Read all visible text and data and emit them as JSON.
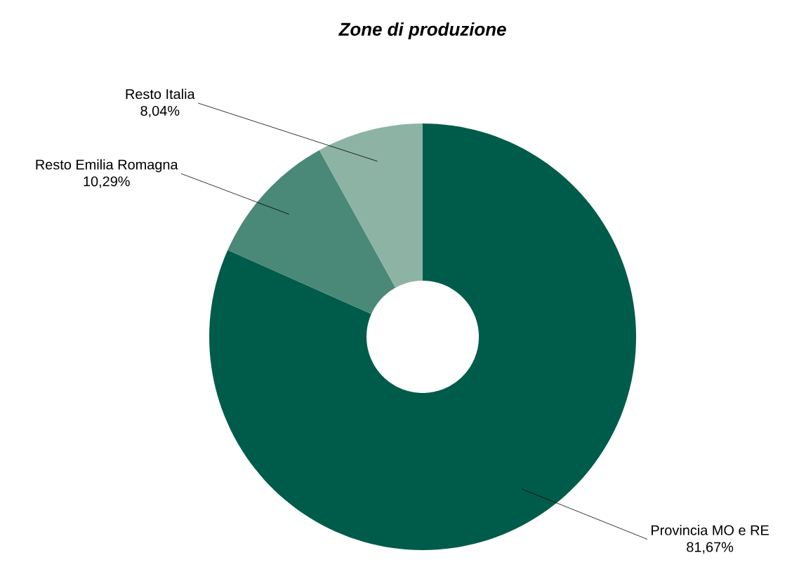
{
  "chart_data": {
    "type": "donut",
    "title": "Zone di produzione",
    "categories": [
      "Provincia MO e RE",
      "Resto Emilia Romagna",
      "Resto Italia"
    ],
    "values": [
      81.67,
      10.29,
      8.04
    ],
    "value_labels": [
      "81,67%",
      "10,29%",
      "8,04%"
    ],
    "colors": [
      "#005c4a",
      "#4a8877",
      "#8db3a5"
    ]
  }
}
